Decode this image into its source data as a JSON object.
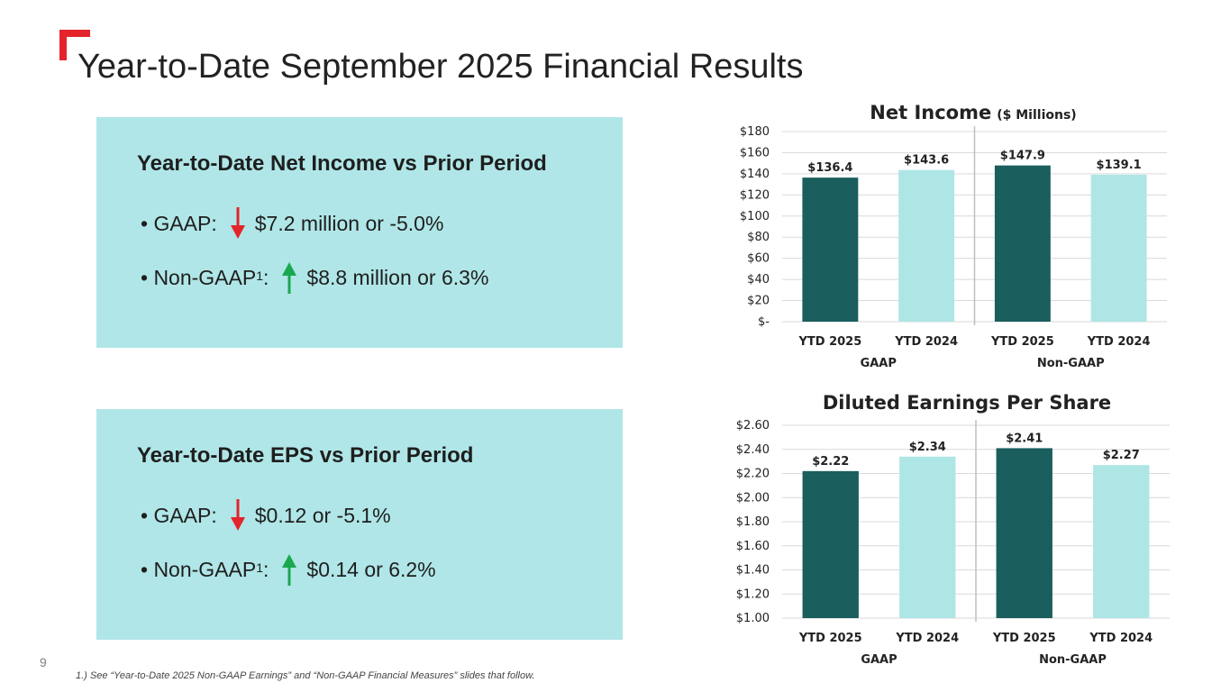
{
  "slide": {
    "title": "Year-to-Date September 2025 Financial Results",
    "page_number": "9",
    "footnote": "1.) See “Year-to-Date 2025 Non-GAAP Earnings” and “Non-GAAP Financial Measures” slides that follow.",
    "accent_color": "#e3242b"
  },
  "panels": [
    {
      "heading": "Year-to-Date Net Income vs Prior Period",
      "bullets": [
        {
          "prefix": "• GAAP:",
          "sup": "",
          "direction": "down",
          "text": "$7.2 million or -5.0%"
        },
        {
          "prefix": "• Non-GAAP",
          "sup": "1",
          "suffix": ":",
          "direction": "up",
          "text": "$8.8 million or 6.3%"
        }
      ]
    },
    {
      "heading": "Year-to-Date EPS vs Prior Period",
      "bullets": [
        {
          "prefix": "• GAAP:",
          "sup": "",
          "direction": "down",
          "text": "$0.12 or -5.1%"
        },
        {
          "prefix": "• Non-GAAP",
          "sup": "1",
          "suffix": ":",
          "direction": "up",
          "text": "$0.14 or 6.2%"
        }
      ]
    }
  ],
  "colors": {
    "panel_bg": "#b0e6e7",
    "dark_bar": "#1b5e5e",
    "light_bar": "#aee6e6",
    "arrow_down": "#e3242b",
    "arrow_up": "#1aa84f"
  },
  "chart_data": [
    {
      "type": "bar",
      "title": "Net Income",
      "subtitle": "($ Millions)",
      "categories": [
        "YTD 2025",
        "YTD 2024",
        "YTD 2025",
        "YTD 2024"
      ],
      "groups": [
        "GAAP",
        "Non-GAAP"
      ],
      "values": [
        136.4,
        143.6,
        147.9,
        139.1
      ],
      "data_labels": [
        "$136.4",
        "$143.6",
        "$147.9",
        "$139.1"
      ],
      "yticks": [
        "$-",
        "$20",
        "$40",
        "$60",
        "$80",
        "$100",
        "$120",
        "$140",
        "$160",
        "$180"
      ],
      "ylim": [
        0,
        180
      ],
      "grid": true
    },
    {
      "type": "bar",
      "title": "Diluted Earnings Per Share",
      "categories": [
        "YTD 2025",
        "YTD 2024",
        "YTD 2025",
        "YTD 2024"
      ],
      "groups": [
        "GAAP",
        "Non-GAAP"
      ],
      "values": [
        2.22,
        2.34,
        2.41,
        2.27
      ],
      "data_labels": [
        "$2.22",
        "$2.34",
        "$2.41",
        "$2.27"
      ],
      "yticks": [
        "$1.00",
        "$1.20",
        "$1.40",
        "$1.60",
        "$1.80",
        "$2.00",
        "$2.20",
        "$2.40",
        "$2.60"
      ],
      "ylim": [
        1.0,
        2.6
      ],
      "grid": true
    }
  ]
}
